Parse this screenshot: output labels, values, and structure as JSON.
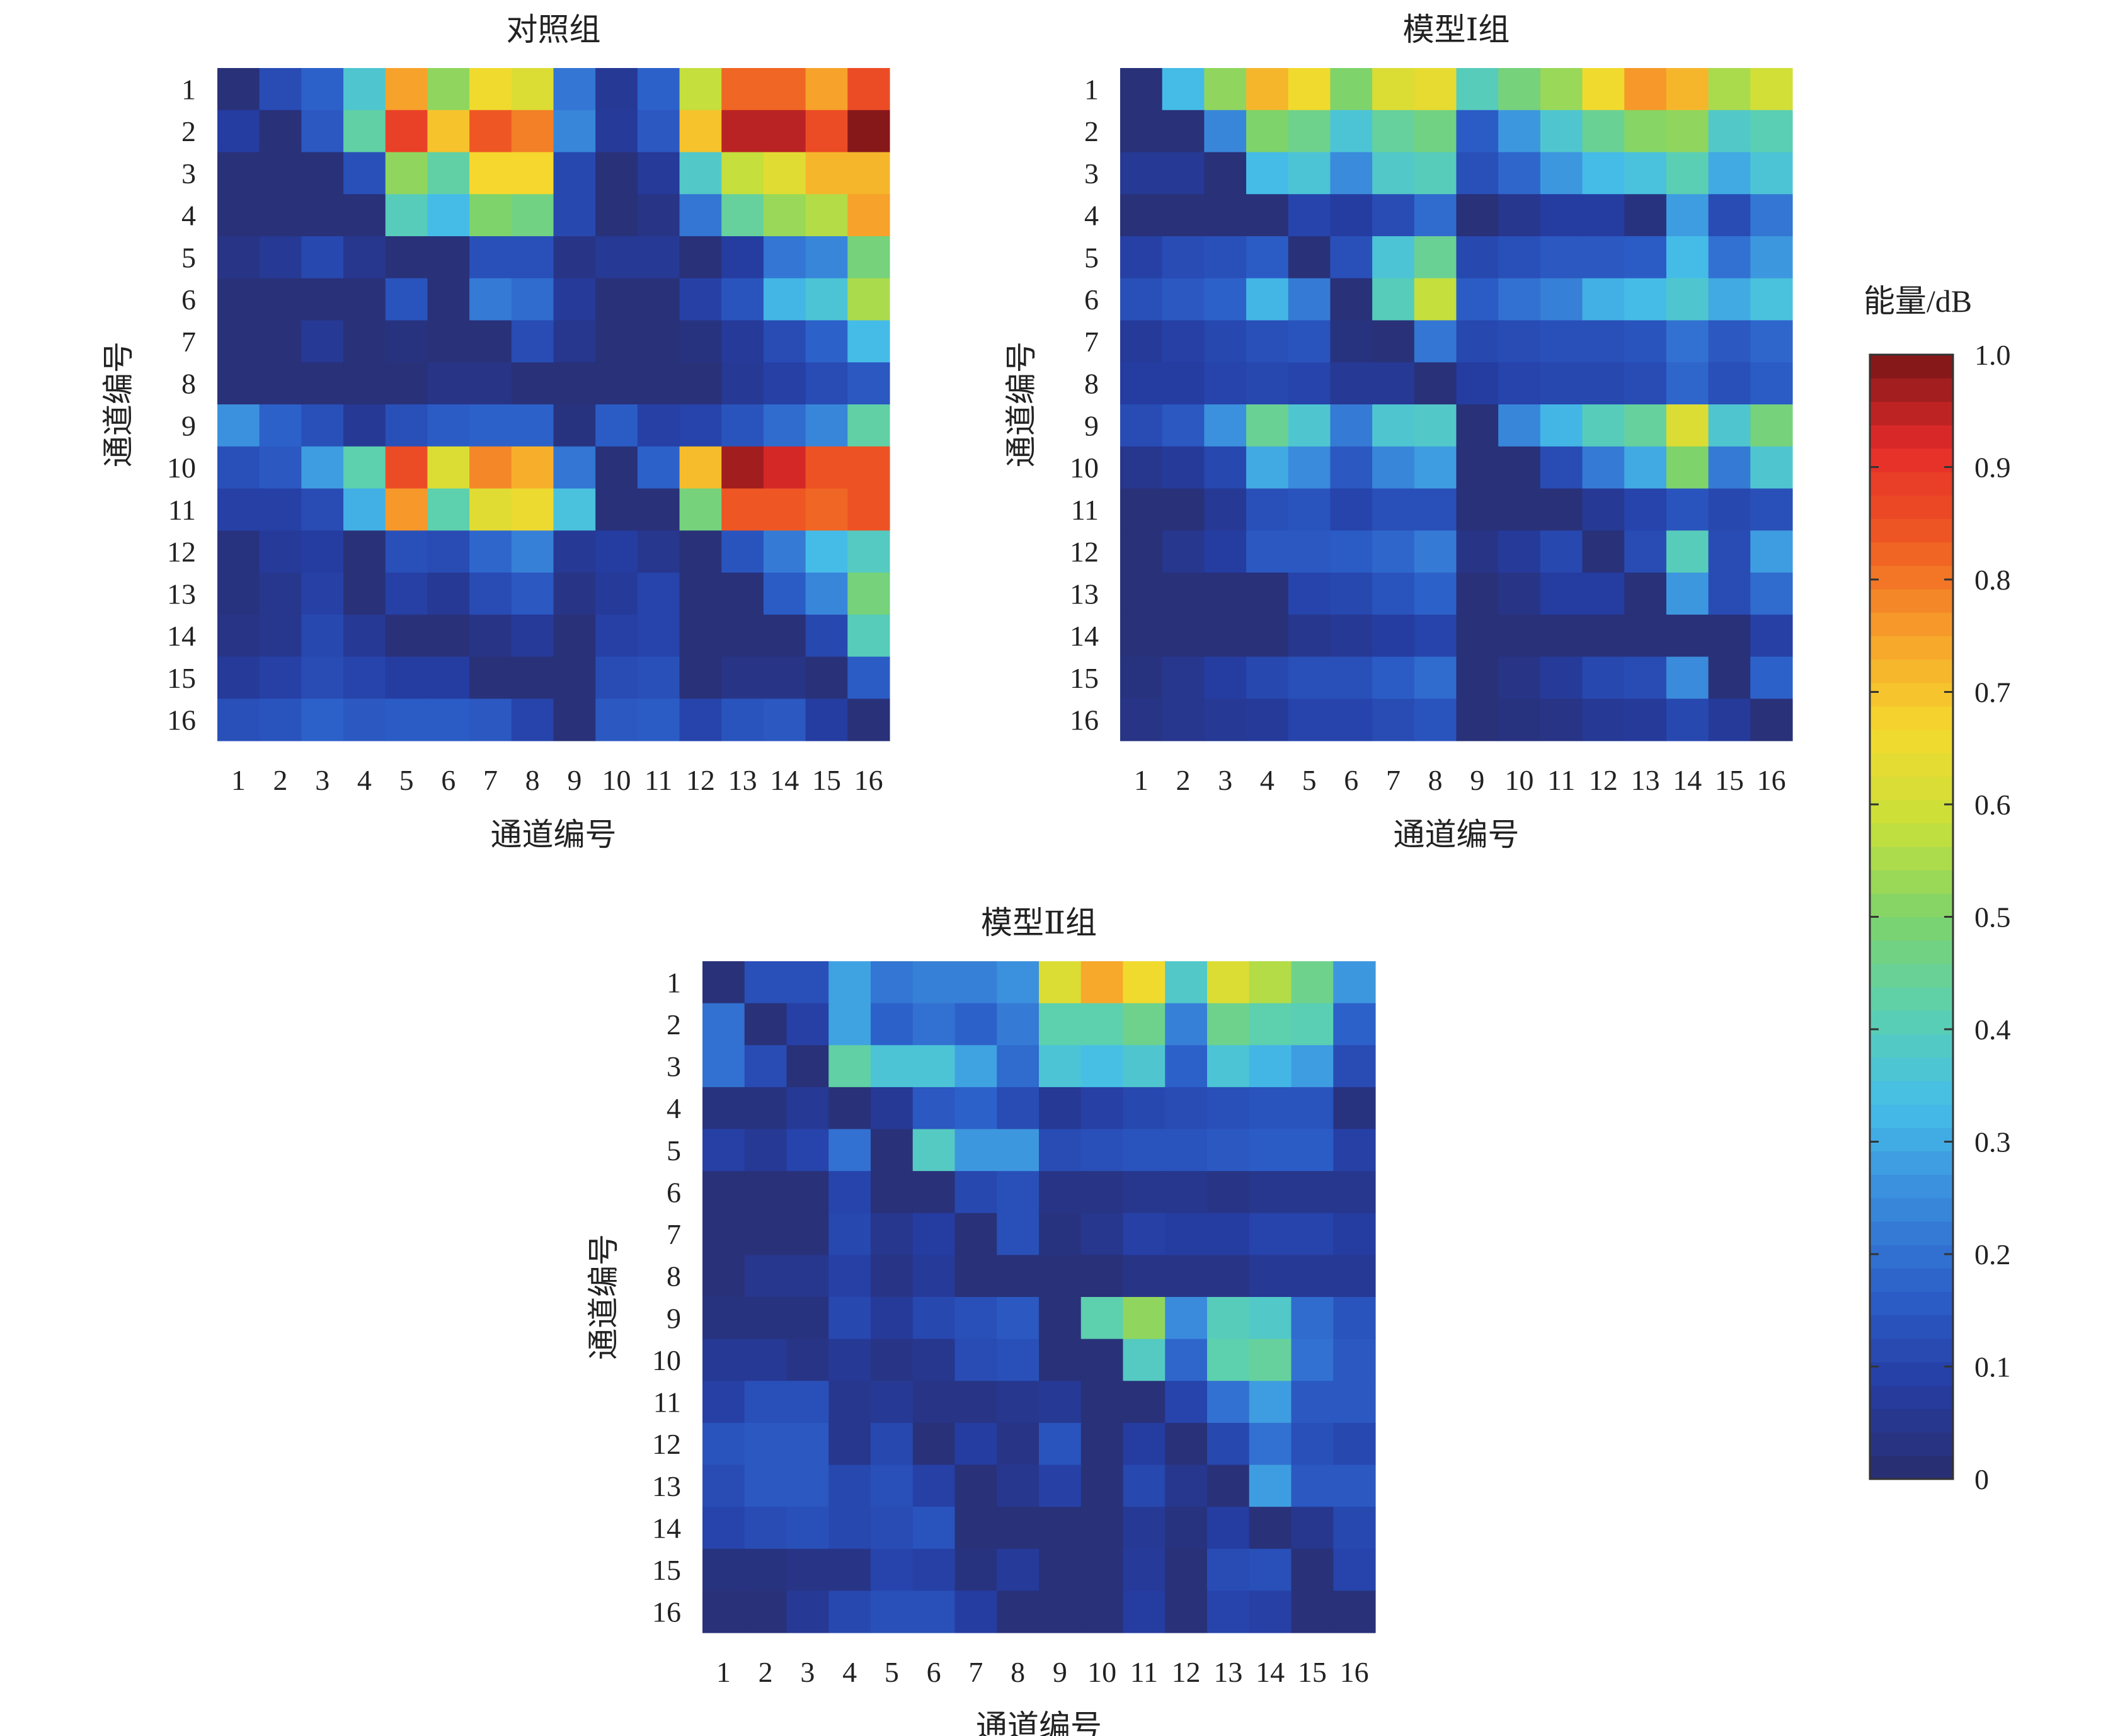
{
  "chart_data": {
    "type": "heatmap",
    "colorbar": {
      "label": "能量/dB",
      "range": [
        0,
        1
      ],
      "ticks": [
        0,
        0.1,
        0.2,
        0.3,
        0.4,
        0.5,
        0.6,
        0.7,
        0.8,
        0.9,
        1.0
      ],
      "tick_labels": [
        "0",
        "0.1",
        "0.2",
        "0.3",
        "0.4",
        "0.5",
        "0.6",
        "0.7",
        "0.8",
        "0.9",
        "1.0"
      ],
      "colormap": "jet",
      "colors": [
        "#2a2d6c",
        "#253da3",
        "#2c5fc9",
        "#3a8bdc",
        "#45bee8",
        "#5cd0b0",
        "#7ed36a",
        "#c8e03a",
        "#f5d92d",
        "#f7a22b",
        "#ef5b23",
        "#e52c2a",
        "#7a1518"
      ]
    },
    "panels": [
      {
        "title": "对照组",
        "xlabel": "通道编号",
        "ylabel": "通道编号",
        "x_ticks": [
          "1",
          "2",
          "3",
          "4",
          "5",
          "6",
          "7",
          "8",
          "9",
          "10",
          "11",
          "12",
          "13",
          "14",
          "15",
          "16"
        ],
        "y_ticks": [
          "1",
          "2",
          "3",
          "4",
          "5",
          "6",
          "7",
          "8",
          "9",
          "10",
          "11",
          "12",
          "13",
          "14",
          "15",
          "16"
        ],
        "values": [
          [
            0.02,
            0.12,
            0.17,
            0.37,
            0.75,
            0.52,
            0.66,
            0.62,
            0.21,
            0.06,
            0.17,
            0.58,
            0.82,
            0.82,
            0.75,
            0.86
          ],
          [
            0.08,
            0.02,
            0.15,
            0.43,
            0.88,
            0.7,
            0.84,
            0.79,
            0.24,
            0.07,
            0.15,
            0.7,
            0.95,
            0.95,
            0.86,
            0.99
          ],
          [
            0.02,
            0.02,
            0.02,
            0.13,
            0.52,
            0.43,
            0.67,
            0.67,
            0.11,
            0.02,
            0.07,
            0.38,
            0.58,
            0.63,
            0.72,
            0.72
          ],
          [
            0.02,
            0.02,
            0.02,
            0.02,
            0.4,
            0.33,
            0.5,
            0.47,
            0.11,
            0.02,
            0.04,
            0.21,
            0.44,
            0.53,
            0.56,
            0.75
          ],
          [
            0.04,
            0.06,
            0.11,
            0.05,
            0.02,
            0.02,
            0.13,
            0.13,
            0.04,
            0.06,
            0.06,
            0.02,
            0.08,
            0.21,
            0.24,
            0.48
          ],
          [
            0.02,
            0.02,
            0.02,
            0.02,
            0.14,
            0.02,
            0.22,
            0.19,
            0.07,
            0.02,
            0.02,
            0.09,
            0.14,
            0.32,
            0.36,
            0.55
          ],
          [
            0.02,
            0.02,
            0.06,
            0.02,
            0.03,
            0.02,
            0.02,
            0.12,
            0.05,
            0.02,
            0.02,
            0.03,
            0.07,
            0.12,
            0.17,
            0.33
          ],
          [
            0.02,
            0.02,
            0.02,
            0.02,
            0.02,
            0.04,
            0.04,
            0.02,
            0.02,
            0.02,
            0.02,
            0.02,
            0.06,
            0.09,
            0.12,
            0.15
          ],
          [
            0.26,
            0.17,
            0.13,
            0.06,
            0.13,
            0.16,
            0.17,
            0.17,
            0.03,
            0.16,
            0.09,
            0.1,
            0.14,
            0.19,
            0.24,
            0.43
          ],
          [
            0.13,
            0.15,
            0.28,
            0.42,
            0.86,
            0.62,
            0.78,
            0.73,
            0.21,
            0.02,
            0.17,
            0.71,
            0.97,
            0.93,
            0.85,
            0.85
          ],
          [
            0.09,
            0.09,
            0.12,
            0.31,
            0.76,
            0.42,
            0.63,
            0.65,
            0.35,
            0.02,
            0.02,
            0.48,
            0.84,
            0.84,
            0.82,
            0.85
          ],
          [
            0.03,
            0.07,
            0.08,
            0.02,
            0.13,
            0.12,
            0.18,
            0.23,
            0.06,
            0.08,
            0.05,
            0.02,
            0.14,
            0.22,
            0.33,
            0.39
          ],
          [
            0.03,
            0.05,
            0.09,
            0.02,
            0.09,
            0.06,
            0.12,
            0.15,
            0.04,
            0.07,
            0.1,
            0.02,
            0.02,
            0.16,
            0.24,
            0.48
          ],
          [
            0.04,
            0.05,
            0.11,
            0.06,
            0.02,
            0.02,
            0.04,
            0.07,
            0.02,
            0.09,
            0.1,
            0.02,
            0.02,
            0.02,
            0.11,
            0.4
          ],
          [
            0.07,
            0.09,
            0.12,
            0.1,
            0.08,
            0.08,
            0.02,
            0.02,
            0.02,
            0.12,
            0.13,
            0.02,
            0.04,
            0.04,
            0.02,
            0.16
          ],
          [
            0.13,
            0.14,
            0.17,
            0.15,
            0.16,
            0.16,
            0.15,
            0.1,
            0.02,
            0.15,
            0.16,
            0.1,
            0.14,
            0.15,
            0.08,
            0.02
          ]
        ]
      },
      {
        "title": "模型Ⅰ组",
        "xlabel": "通道编号",
        "ylabel": "通道编号",
        "x_ticks": [
          "1",
          "2",
          "3",
          "4",
          "5",
          "6",
          "7",
          "8",
          "9",
          "10",
          "11",
          "12",
          "13",
          "14",
          "15",
          "16"
        ],
        "y_ticks": [
          "1",
          "2",
          "3",
          "4",
          "5",
          "6",
          "7",
          "8",
          "9",
          "10",
          "11",
          "12",
          "13",
          "14",
          "15",
          "16"
        ],
        "values": [
          [
            0.02,
            0.33,
            0.52,
            0.72,
            0.66,
            0.5,
            0.62,
            0.64,
            0.4,
            0.48,
            0.53,
            0.66,
            0.76,
            0.72,
            0.55,
            0.6
          ],
          [
            0.02,
            0.02,
            0.24,
            0.5,
            0.46,
            0.36,
            0.44,
            0.47,
            0.16,
            0.27,
            0.37,
            0.45,
            0.51,
            0.52,
            0.38,
            0.41
          ],
          [
            0.06,
            0.06,
            0.02,
            0.33,
            0.36,
            0.25,
            0.38,
            0.4,
            0.13,
            0.18,
            0.27,
            0.33,
            0.35,
            0.41,
            0.3,
            0.36
          ],
          [
            0.02,
            0.02,
            0.02,
            0.02,
            0.1,
            0.08,
            0.12,
            0.19,
            0.02,
            0.05,
            0.08,
            0.08,
            0.03,
            0.28,
            0.12,
            0.21
          ],
          [
            0.09,
            0.12,
            0.13,
            0.16,
            0.02,
            0.13,
            0.36,
            0.45,
            0.11,
            0.13,
            0.15,
            0.15,
            0.16,
            0.33,
            0.2,
            0.27
          ],
          [
            0.13,
            0.15,
            0.17,
            0.32,
            0.22,
            0.02,
            0.4,
            0.58,
            0.16,
            0.2,
            0.23,
            0.31,
            0.33,
            0.37,
            0.3,
            0.35
          ],
          [
            0.07,
            0.09,
            0.11,
            0.13,
            0.14,
            0.03,
            0.02,
            0.21,
            0.11,
            0.12,
            0.13,
            0.13,
            0.14,
            0.2,
            0.15,
            0.18
          ],
          [
            0.08,
            0.08,
            0.1,
            0.11,
            0.1,
            0.06,
            0.06,
            0.02,
            0.08,
            0.1,
            0.11,
            0.11,
            0.12,
            0.18,
            0.13,
            0.16
          ],
          [
            0.12,
            0.15,
            0.26,
            0.45,
            0.37,
            0.22,
            0.37,
            0.38,
            0.02,
            0.24,
            0.32,
            0.4,
            0.44,
            0.62,
            0.37,
            0.48
          ],
          [
            0.05,
            0.07,
            0.11,
            0.3,
            0.25,
            0.15,
            0.24,
            0.28,
            0.02,
            0.02,
            0.12,
            0.22,
            0.3,
            0.5,
            0.22,
            0.37
          ],
          [
            0.02,
            0.02,
            0.06,
            0.13,
            0.14,
            0.1,
            0.13,
            0.13,
            0.02,
            0.02,
            0.02,
            0.06,
            0.1,
            0.14,
            0.11,
            0.13
          ],
          [
            0.02,
            0.05,
            0.08,
            0.15,
            0.15,
            0.16,
            0.18,
            0.22,
            0.04,
            0.07,
            0.11,
            0.02,
            0.12,
            0.4,
            0.12,
            0.28
          ],
          [
            0.02,
            0.02,
            0.02,
            0.02,
            0.1,
            0.11,
            0.14,
            0.17,
            0.02,
            0.04,
            0.08,
            0.08,
            0.02,
            0.27,
            0.12,
            0.19
          ],
          [
            0.02,
            0.02,
            0.02,
            0.02,
            0.05,
            0.06,
            0.08,
            0.1,
            0.02,
            0.02,
            0.02,
            0.02,
            0.02,
            0.02,
            0.02,
            0.09
          ],
          [
            0.03,
            0.05,
            0.08,
            0.11,
            0.13,
            0.13,
            0.16,
            0.19,
            0.02,
            0.04,
            0.07,
            0.11,
            0.12,
            0.25,
            0.02,
            0.17
          ],
          [
            0.04,
            0.05,
            0.06,
            0.07,
            0.1,
            0.1,
            0.12,
            0.14,
            0.02,
            0.03,
            0.04,
            0.06,
            0.07,
            0.11,
            0.07,
            0.02
          ]
        ]
      },
      {
        "title": "模型Ⅱ组",
        "xlabel": "通道编号",
        "ylabel": "通道编号",
        "x_ticks": [
          "1",
          "2",
          "3",
          "4",
          "5",
          "6",
          "7",
          "8",
          "9",
          "10",
          "11",
          "12",
          "13",
          "14",
          "15",
          "16"
        ],
        "y_ticks": [
          "1",
          "2",
          "3",
          "4",
          "5",
          "6",
          "7",
          "8",
          "9",
          "10",
          "11",
          "12",
          "13",
          "14",
          "15",
          "16"
        ],
        "values": [
          [
            0.02,
            0.13,
            0.13,
            0.29,
            0.21,
            0.23,
            0.23,
            0.26,
            0.62,
            0.74,
            0.66,
            0.38,
            0.62,
            0.56,
            0.46,
            0.27
          ],
          [
            0.2,
            0.02,
            0.09,
            0.29,
            0.17,
            0.2,
            0.17,
            0.22,
            0.42,
            0.42,
            0.46,
            0.23,
            0.46,
            0.42,
            0.41,
            0.17
          ],
          [
            0.2,
            0.12,
            0.02,
            0.43,
            0.36,
            0.36,
            0.29,
            0.19,
            0.36,
            0.34,
            0.37,
            0.17,
            0.36,
            0.32,
            0.28,
            0.12
          ],
          [
            0.03,
            0.03,
            0.06,
            0.02,
            0.06,
            0.15,
            0.17,
            0.12,
            0.06,
            0.09,
            0.11,
            0.12,
            0.13,
            0.14,
            0.14,
            0.03
          ],
          [
            0.09,
            0.06,
            0.1,
            0.2,
            0.02,
            0.39,
            0.27,
            0.27,
            0.12,
            0.13,
            0.14,
            0.14,
            0.15,
            0.16,
            0.16,
            0.09
          ],
          [
            0.02,
            0.02,
            0.02,
            0.1,
            0.02,
            0.02,
            0.11,
            0.13,
            0.04,
            0.04,
            0.05,
            0.05,
            0.04,
            0.05,
            0.05,
            0.05
          ],
          [
            0.02,
            0.02,
            0.02,
            0.11,
            0.05,
            0.08,
            0.02,
            0.13,
            0.03,
            0.05,
            0.09,
            0.08,
            0.08,
            0.1,
            0.1,
            0.08
          ],
          [
            0.02,
            0.05,
            0.05,
            0.09,
            0.04,
            0.07,
            0.02,
            0.02,
            0.02,
            0.02,
            0.04,
            0.04,
            0.04,
            0.06,
            0.06,
            0.06
          ],
          [
            0.03,
            0.03,
            0.03,
            0.11,
            0.07,
            0.11,
            0.13,
            0.15,
            0.02,
            0.42,
            0.52,
            0.25,
            0.4,
            0.38,
            0.19,
            0.14
          ],
          [
            0.06,
            0.06,
            0.04,
            0.06,
            0.04,
            0.05,
            0.12,
            0.13,
            0.02,
            0.02,
            0.39,
            0.18,
            0.42,
            0.44,
            0.2,
            0.15
          ],
          [
            0.09,
            0.13,
            0.13,
            0.05,
            0.06,
            0.04,
            0.04,
            0.05,
            0.06,
            0.02,
            0.02,
            0.1,
            0.2,
            0.28,
            0.15,
            0.15
          ],
          [
            0.14,
            0.15,
            0.15,
            0.05,
            0.11,
            0.02,
            0.08,
            0.04,
            0.14,
            0.02,
            0.08,
            0.02,
            0.11,
            0.2,
            0.13,
            0.11
          ],
          [
            0.12,
            0.15,
            0.15,
            0.11,
            0.13,
            0.09,
            0.02,
            0.05,
            0.09,
            0.02,
            0.11,
            0.05,
            0.02,
            0.28,
            0.15,
            0.15
          ],
          [
            0.1,
            0.12,
            0.13,
            0.11,
            0.12,
            0.14,
            0.02,
            0.02,
            0.02,
            0.02,
            0.06,
            0.03,
            0.08,
            0.02,
            0.05,
            0.11
          ],
          [
            0.03,
            0.03,
            0.04,
            0.04,
            0.1,
            0.09,
            0.03,
            0.07,
            0.02,
            0.02,
            0.07,
            0.02,
            0.12,
            0.13,
            0.02,
            0.1
          ],
          [
            0.02,
            0.02,
            0.06,
            0.11,
            0.13,
            0.13,
            0.08,
            0.02,
            0.02,
            0.02,
            0.08,
            0.02,
            0.1,
            0.09,
            0.02,
            0.02
          ]
        ]
      }
    ]
  }
}
